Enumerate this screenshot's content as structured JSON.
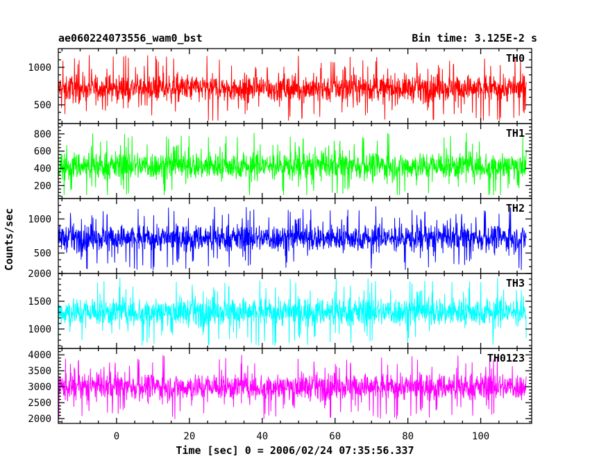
{
  "chart_data": {
    "type": "line",
    "title": "ae060224073556_wam0_bst",
    "subtitle": "Bin time: 3.125E-2 s",
    "xlabel": "Time [sec] 0 = 2006/02/24 07:35:56.337",
    "ylabel": "Counts/sec",
    "xlim": [
      -16,
      114
    ],
    "xticks": [
      0,
      20,
      40,
      60,
      80,
      100
    ],
    "xtick_labels": [
      "0",
      "20",
      "40",
      "60",
      "80",
      "100"
    ],
    "x_data_range": [
      -16,
      112.5
    ],
    "series": [
      {
        "name": "TH0",
        "color": "#ff0000",
        "ylim": [
          250,
          1250
        ],
        "yticks": [
          500,
          1000
        ],
        "ytick_labels": [
          "500",
          "1000"
        ],
        "mean": 720,
        "spread": 260,
        "min": 290,
        "max": 1250
      },
      {
        "name": "TH1",
        "color": "#00ff00",
        "ylim": [
          50,
          920
        ],
        "yticks": [
          200,
          400,
          600,
          800
        ],
        "ytick_labels": [
          "200",
          "400",
          "600",
          "800"
        ],
        "mean": 430,
        "spread": 230,
        "min": 90,
        "max": 900
      },
      {
        "name": "TH2",
        "color": "#0000ff",
        "ylim": [
          200,
          1300
        ],
        "yticks": [
          500,
          1000
        ],
        "ytick_labels": [
          "500",
          "1000"
        ],
        "mean": 720,
        "spread": 280,
        "min": 250,
        "max": 1300
      },
      {
        "name": "TH3",
        "color": "#00ffff",
        "ylim": [
          650,
          2000
        ],
        "yticks": [
          1000,
          1500,
          2000
        ],
        "ytick_labels": [
          "1000",
          "1500",
          "2000"
        ],
        "mean": 1310,
        "spread": 370,
        "min": 700,
        "max": 2000
      },
      {
        "name": "TH0123",
        "color": "#ff00ff",
        "ylim": [
          1850,
          4200
        ],
        "yticks": [
          2000,
          2500,
          3000,
          3500,
          4000
        ],
        "ytick_labels": [
          "2000",
          "2500",
          "3000",
          "3500",
          "4000"
        ],
        "mean": 3000,
        "spread": 600,
        "min": 1900,
        "max": 4150
      }
    ]
  }
}
